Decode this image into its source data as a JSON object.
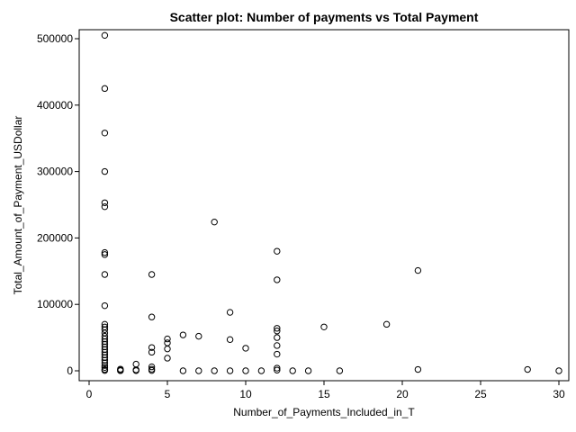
{
  "chart_data": {
    "type": "scatter",
    "title": "Scatter plot: Number of payments vs Total Payment",
    "xlabel": "Number_of_Payments_Included_in_T",
    "ylabel": "Total_Amount_of_Payment_USDollar",
    "xlim": [
      0,
      30
    ],
    "ylim": [
      0,
      500000
    ],
    "x_ticks": [
      0,
      5,
      10,
      15,
      20,
      25,
      30
    ],
    "y_ticks": [
      0,
      100000,
      200000,
      300000,
      400000,
      500000
    ],
    "x_tick_labels": [
      "0",
      "5",
      "10",
      "15",
      "20",
      "25",
      "30"
    ],
    "y_tick_labels": [
      "0",
      "100000",
      "200000",
      "300000",
      "400000",
      "500000"
    ],
    "grid": false,
    "marker": "open-circle",
    "points": [
      {
        "x": 1,
        "y": 505000
      },
      {
        "x": 1,
        "y": 425000
      },
      {
        "x": 1,
        "y": 358000
      },
      {
        "x": 1,
        "y": 300000
      },
      {
        "x": 1,
        "y": 253000
      },
      {
        "x": 1,
        "y": 247000
      },
      {
        "x": 1,
        "y": 178000
      },
      {
        "x": 1,
        "y": 175000
      },
      {
        "x": 1,
        "y": 145000
      },
      {
        "x": 1,
        "y": 98000
      },
      {
        "x": 1,
        "y": 70000
      },
      {
        "x": 1,
        "y": 66000
      },
      {
        "x": 1,
        "y": 62000
      },
      {
        "x": 1,
        "y": 57000
      },
      {
        "x": 1,
        "y": 52000
      },
      {
        "x": 1,
        "y": 48000
      },
      {
        "x": 1,
        "y": 44000
      },
      {
        "x": 1,
        "y": 40000
      },
      {
        "x": 1,
        "y": 36000
      },
      {
        "x": 1,
        "y": 32000
      },
      {
        "x": 1,
        "y": 28000
      },
      {
        "x": 1,
        "y": 24000
      },
      {
        "x": 1,
        "y": 20000
      },
      {
        "x": 1,
        "y": 16000
      },
      {
        "x": 1,
        "y": 12000
      },
      {
        "x": 1,
        "y": 8000
      },
      {
        "x": 1,
        "y": 5000
      },
      {
        "x": 1,
        "y": 2000
      },
      {
        "x": 1,
        "y": 500
      },
      {
        "x": 2,
        "y": 2500
      },
      {
        "x": 2,
        "y": 1000
      },
      {
        "x": 2,
        "y": 200
      },
      {
        "x": 3,
        "y": 10000
      },
      {
        "x": 3,
        "y": 1500
      },
      {
        "x": 3,
        "y": 300
      },
      {
        "x": 4,
        "y": 145000
      },
      {
        "x": 4,
        "y": 81000
      },
      {
        "x": 4,
        "y": 35000
      },
      {
        "x": 4,
        "y": 28000
      },
      {
        "x": 4,
        "y": 6000
      },
      {
        "x": 4,
        "y": 2500
      },
      {
        "x": 4,
        "y": 500
      },
      {
        "x": 5,
        "y": 48000
      },
      {
        "x": 5,
        "y": 42000
      },
      {
        "x": 5,
        "y": 33000
      },
      {
        "x": 5,
        "y": 19000
      },
      {
        "x": 6,
        "y": 54000
      },
      {
        "x": 6,
        "y": 0
      },
      {
        "x": 7,
        "y": 52000
      },
      {
        "x": 7,
        "y": 0
      },
      {
        "x": 8,
        "y": 224000
      },
      {
        "x": 8,
        "y": 0
      },
      {
        "x": 9,
        "y": 88000
      },
      {
        "x": 9,
        "y": 47000
      },
      {
        "x": 9,
        "y": 0
      },
      {
        "x": 10,
        "y": 34000
      },
      {
        "x": 10,
        "y": 0
      },
      {
        "x": 11,
        "y": 0
      },
      {
        "x": 12,
        "y": 180000
      },
      {
        "x": 12,
        "y": 137000
      },
      {
        "x": 12,
        "y": 64000
      },
      {
        "x": 12,
        "y": 60000
      },
      {
        "x": 12,
        "y": 50000
      },
      {
        "x": 12,
        "y": 38000
      },
      {
        "x": 12,
        "y": 25000
      },
      {
        "x": 12,
        "y": 4000
      },
      {
        "x": 12,
        "y": 1000
      },
      {
        "x": 13,
        "y": 0
      },
      {
        "x": 14,
        "y": 0
      },
      {
        "x": 15,
        "y": 66000
      },
      {
        "x": 16,
        "y": 0
      },
      {
        "x": 19,
        "y": 70000
      },
      {
        "x": 21,
        "y": 151000
      },
      {
        "x": 21,
        "y": 2000
      },
      {
        "x": 28,
        "y": 2000
      },
      {
        "x": 30,
        "y": 0
      }
    ]
  }
}
